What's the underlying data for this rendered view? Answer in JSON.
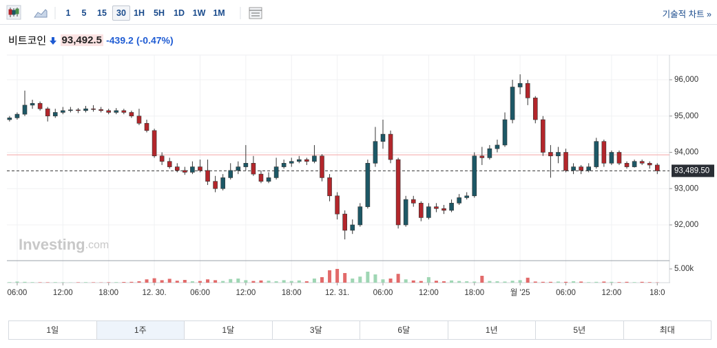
{
  "toolbar": {
    "intervals": [
      "1",
      "5",
      "15",
      "30",
      "1H",
      "5H",
      "1D",
      "1W",
      "1M"
    ],
    "selected": "30",
    "link": "기술적 차트 »"
  },
  "header": {
    "name": "비트코인",
    "price": "93,492.5",
    "change": "-439.2",
    "change_pct": "(-0.47%)"
  },
  "watermark": {
    "brand": "Investing",
    "suffix": ".com"
  },
  "ranges": {
    "items": [
      "1일",
      "1주",
      "1달",
      "3달",
      "6달",
      "1년",
      "5년",
      "최대"
    ],
    "selected": "1주"
  },
  "chart_data": {
    "type": "candlestick",
    "x": [
      -1,
      0,
      1,
      2,
      3,
      4,
      5,
      6,
      7,
      8,
      9,
      10,
      11,
      12,
      13,
      14,
      15,
      16,
      17,
      18,
      19,
      20,
      21,
      22,
      23,
      24,
      25,
      26,
      27,
      28,
      29,
      30,
      31,
      32,
      33,
      34,
      35,
      36,
      37,
      38,
      39,
      40,
      41,
      42,
      43,
      44,
      45,
      46,
      47,
      48,
      49,
      50,
      51,
      52,
      53,
      54,
      55,
      56,
      57,
      58,
      59,
      60,
      61,
      62,
      63,
      64,
      65,
      66,
      67,
      68,
      69,
      70,
      71,
      72,
      73,
      74,
      75,
      76,
      77,
      78,
      79,
      80,
      81,
      82,
      83,
      84
    ],
    "candles": [
      [
        94900,
        95000,
        94850,
        94950
      ],
      [
        94950,
        95100,
        94900,
        95050
      ],
      [
        95050,
        95700,
        95000,
        95300
      ],
      [
        95300,
        95450,
        95200,
        95350
      ],
      [
        95350,
        95400,
        95150,
        95200
      ],
      [
        95200,
        95250,
        94850,
        95000
      ],
      [
        95000,
        95200,
        94950,
        95100
      ],
      [
        95100,
        95250,
        95050,
        95150
      ],
      [
        95150,
        95250,
        95100,
        95170
      ],
      [
        95170,
        95220,
        95080,
        95150
      ],
      [
        95150,
        95280,
        95100,
        95200
      ],
      [
        95200,
        95300,
        95120,
        95180
      ],
      [
        95180,
        95250,
        95100,
        95150
      ],
      [
        95150,
        95200,
        95050,
        95100
      ],
      [
        95100,
        95220,
        95050,
        95150
      ],
      [
        95150,
        95200,
        95050,
        95100
      ],
      [
        95100,
        95150,
        94950,
        95000
      ],
      [
        95000,
        95200,
        94750,
        94800
      ],
      [
        94800,
        94900,
        94550,
        94600
      ],
      [
        94600,
        94650,
        93850,
        93900
      ],
      [
        93900,
        94000,
        93650,
        93750
      ],
      [
        93750,
        93850,
        93550,
        93600
      ],
      [
        93600,
        93700,
        93450,
        93500
      ],
      [
        93500,
        93600,
        93380,
        93450
      ],
      [
        93450,
        93750,
        93400,
        93600
      ],
      [
        93600,
        93800,
        93450,
        93500
      ],
      [
        93500,
        93800,
        93100,
        93200
      ],
      [
        93200,
        93350,
        92900,
        93000
      ],
      [
        93000,
        93400,
        92950,
        93300
      ],
      [
        93300,
        93700,
        93250,
        93500
      ],
      [
        93500,
        93750,
        93400,
        93600
      ],
      [
        93600,
        94200,
        93500,
        93700
      ],
      [
        93700,
        93900,
        93350,
        93400
      ],
      [
        93400,
        93500,
        93150,
        93200
      ],
      [
        93200,
        93450,
        93150,
        93300
      ],
      [
        93300,
        93850,
        93250,
        93600
      ],
      [
        93600,
        93800,
        93550,
        93700
      ],
      [
        93700,
        93850,
        93600,
        93750
      ],
      [
        93750,
        93900,
        93700,
        93800
      ],
      [
        93800,
        93850,
        93650,
        93750
      ],
      [
        93750,
        94200,
        93700,
        93900
      ],
      [
        93900,
        93950,
        93200,
        93300
      ],
      [
        93300,
        93400,
        92650,
        92800
      ],
      [
        92800,
        92900,
        92150,
        92300
      ],
      [
        92300,
        92400,
        91600,
        91850
      ],
      [
        91850,
        92150,
        91750,
        92000
      ],
      [
        92000,
        92600,
        91950,
        92500
      ],
      [
        92500,
        93800,
        92450,
        93700
      ],
      [
        93700,
        94700,
        93600,
        94300
      ],
      [
        94300,
        94900,
        94100,
        94500
      ],
      [
        94500,
        94600,
        93700,
        93800
      ],
      [
        93800,
        93850,
        91900,
        92000
      ],
      [
        92000,
        92800,
        91950,
        92700
      ],
      [
        92700,
        92800,
        92500,
        92600
      ],
      [
        92600,
        92650,
        92100,
        92200
      ],
      [
        92200,
        92600,
        92150,
        92500
      ],
      [
        92500,
        92600,
        92350,
        92450
      ],
      [
        92450,
        92550,
        92300,
        92400
      ],
      [
        92400,
        92700,
        92350,
        92600
      ],
      [
        92600,
        92850,
        92550,
        92750
      ],
      [
        92750,
        92900,
        92700,
        92800
      ],
      [
        92800,
        94000,
        92750,
        93900
      ],
      [
        93900,
        94150,
        93650,
        93850
      ],
      [
        93850,
        94200,
        93800,
        94100
      ],
      [
        94100,
        94350,
        94000,
        94200
      ],
      [
        94200,
        95100,
        94150,
        94900
      ],
      [
        94900,
        96000,
        94800,
        95800
      ],
      [
        95800,
        96150,
        95600,
        95900
      ],
      [
        95900,
        96000,
        95300,
        95500
      ],
      [
        95500,
        95550,
        94800,
        94900
      ],
      [
        94900,
        95000,
        93900,
        94000
      ],
      [
        94000,
        94200,
        93300,
        93900
      ],
      [
        93900,
        94150,
        93700,
        94000
      ],
      [
        94000,
        94100,
        93450,
        93500
      ],
      [
        93500,
        93700,
        93400,
        93600
      ],
      [
        93600,
        93650,
        93400,
        93500
      ],
      [
        93500,
        93700,
        93450,
        93600
      ],
      [
        93600,
        94400,
        93550,
        94300
      ],
      [
        94300,
        94350,
        93600,
        93700
      ],
      [
        93700,
        94050,
        93650,
        94000
      ],
      [
        94000,
        94050,
        93650,
        93700
      ],
      [
        93700,
        93750,
        93550,
        93600
      ],
      [
        93600,
        93800,
        93580,
        93750
      ],
      [
        93750,
        93800,
        93650,
        93700
      ],
      [
        93700,
        93750,
        93550,
        93650
      ],
      [
        93650,
        93700,
        93400,
        93490
      ]
    ],
    "volumes": [
      200,
      400,
      300,
      200,
      150,
      150,
      200,
      150,
      100,
      150,
      200,
      150,
      100,
      150,
      200,
      250,
      300,
      500,
      1200,
      1600,
      900,
      1400,
      700,
      1000,
      500,
      600,
      1200,
      900,
      600,
      1300,
      1500,
      900,
      600,
      800,
      700,
      500,
      900,
      600,
      800,
      500,
      1500,
      2000,
      4500,
      5000,
      3500,
      1500,
      2200,
      4000,
      3000,
      1200,
      1500,
      3200,
      1200,
      800,
      600,
      2000,
      700,
      500,
      800,
      600,
      500,
      400,
      2500,
      600,
      500,
      400,
      700,
      900,
      1800,
      400,
      300,
      300,
      400,
      300,
      500,
      400,
      200,
      300,
      400,
      300,
      200,
      300,
      200,
      300,
      200,
      100
    ],
    "up_color": "#1d5866",
    "down_color": "#b3262b",
    "vol_up_color": "#9fd6b4",
    "vol_down_color": "#e26a6a",
    "xlim": [
      -1.35,
      85.6
    ],
    "xticks": [
      {
        "value": 0,
        "label": "06:00"
      },
      {
        "value": 6,
        "label": "12:00"
      },
      {
        "value": 12,
        "label": "18:00"
      },
      {
        "value": 18,
        "label": "12. 30."
      },
      {
        "value": 24,
        "label": "06:00"
      },
      {
        "value": 30,
        "label": "12:00"
      },
      {
        "value": 36,
        "label": "18:00"
      },
      {
        "value": 42,
        "label": "12. 31."
      },
      {
        "value": 48,
        "label": "06:00"
      },
      {
        "value": 54,
        "label": "12:00"
      },
      {
        "value": 60,
        "label": "18:00"
      },
      {
        "value": 66,
        "label": "월 '25"
      },
      {
        "value": 72,
        "label": "06:00"
      },
      {
        "value": 78,
        "label": "12:00"
      },
      {
        "value": 84,
        "label": "18:0"
      }
    ],
    "ylim": [
      91033,
      96682
    ],
    "yticks": [
      {
        "value": 92000,
        "label": "92,000"
      },
      {
        "value": 93000,
        "label": "93,000"
      },
      {
        "value": 94000,
        "label": "94,000"
      },
      {
        "value": 95000,
        "label": "95,000"
      },
      {
        "value": 96000,
        "label": "96,000"
      }
    ],
    "vol_ylim": [
      0,
      7750
    ],
    "vol_yticks": [
      {
        "value": 5000,
        "label": "5.00k"
      }
    ],
    "prev_close": 93931.7,
    "last_price": {
      "value": 93489.5,
      "label": "93,489.50"
    },
    "grid": true
  }
}
